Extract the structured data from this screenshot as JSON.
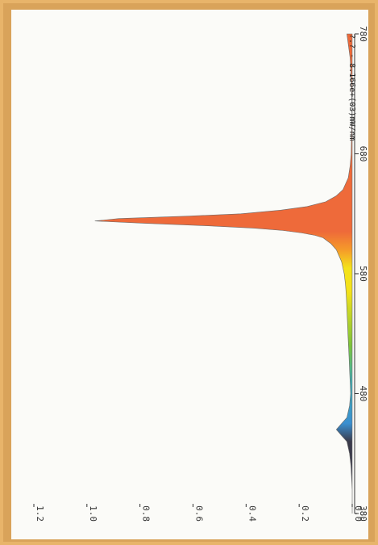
{
  "chart_data": {
    "type": "area",
    "title": "",
    "xlabel": "",
    "ylabel": "",
    "annotation": "?.? - 8.166e+(03)mW/nm",
    "xlim": [
      380,
      780
    ],
    "ylim": [
      0,
      1.2
    ],
    "x_ticks": [
      "380",
      "480",
      "580",
      "680",
      "780"
    ],
    "x_tick_values": [
      380,
      480,
      580,
      680,
      780
    ],
    "y_ticks": [
      "0.0",
      "0.2",
      "0.4",
      "0.6",
      "0.8",
      "1.0",
      "1.2"
    ],
    "y_tick_values": [
      0,
      0.2,
      0.4,
      0.6,
      0.8,
      1.0,
      1.2
    ],
    "series": [
      {
        "x": [
          380,
          400,
          420,
          430,
          440,
          445,
          450,
          455,
          460,
          470,
          480,
          490,
          500,
          510,
          520,
          530,
          540,
          550,
          560,
          570,
          580,
          590,
          600,
          605,
          610,
          612,
          614,
          616,
          618,
          620,
          622,
          624,
          626,
          628,
          630,
          633,
          636,
          640,
          645,
          650,
          660,
          670,
          680,
          700,
          720,
          740,
          760,
          780
        ],
        "y": [
          0.0,
          0.0,
          0.005,
          0.01,
          0.02,
          0.04,
          0.06,
          0.04,
          0.02,
          0.01,
          0.006,
          0.008,
          0.01,
          0.012,
          0.014,
          0.016,
          0.018,
          0.02,
          0.022,
          0.025,
          0.03,
          0.04,
          0.06,
          0.08,
          0.11,
          0.14,
          0.19,
          0.26,
          0.37,
          0.55,
          0.78,
          0.97,
          0.88,
          0.62,
          0.42,
          0.27,
          0.17,
          0.1,
          0.06,
          0.035,
          0.015,
          0.008,
          0.004,
          0.002,
          0.001,
          0.003,
          0.008,
          0.02
        ]
      }
    ],
    "colors": {
      "violet": "#3a3a4a",
      "blue": "#3a8fd0",
      "cyan": "#3fb0b5",
      "green": "#7cc33a",
      "yellow": "#f4e21a",
      "orange": "#f59a2a",
      "red": "#ee6a3a",
      "axis": "#333333"
    }
  }
}
